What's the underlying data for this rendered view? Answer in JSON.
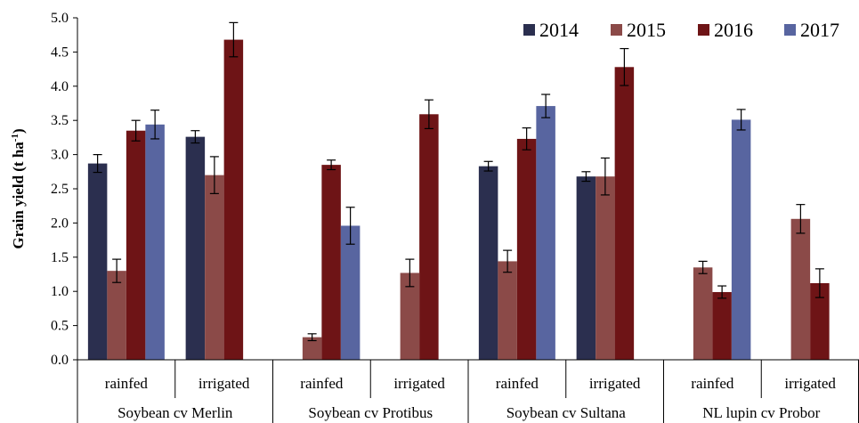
{
  "chart_data": {
    "type": "bar",
    "ylabel": "Grain yield (t ha",
    "ylabel_sup": "-1",
    "ylabel_close": ")",
    "ylim": [
      0,
      5
    ],
    "yticks": [
      "0.0",
      "0.5",
      "1.0",
      "1.5",
      "2.0",
      "2.5",
      "3.0",
      "3.5",
      "4.0",
      "4.5",
      "5.0"
    ],
    "legend_position": "top-right",
    "groups": [
      "Soybean cv Merlin",
      "Soybean cv Protibus",
      "Soybean cv Sultana",
      "NL lupin cv Probor"
    ],
    "categories": [
      "rainfed",
      "irrigated",
      "rainfed",
      "irrigated",
      "rainfed",
      "irrigated",
      "rainfed",
      "irrigated"
    ],
    "series": [
      {
        "name": "2014",
        "color": "#2b2f4f",
        "values": [
          2.87,
          3.26,
          null,
          null,
          2.83,
          2.68,
          null,
          null
        ],
        "errors": [
          0.13,
          0.09,
          null,
          null,
          0.07,
          0.07,
          null,
          null
        ]
      },
      {
        "name": "2015",
        "color": "#8b4a48",
        "values": [
          1.3,
          2.7,
          0.33,
          1.27,
          1.44,
          2.68,
          1.35,
          2.06
        ],
        "errors": [
          0.17,
          0.27,
          0.05,
          0.2,
          0.16,
          0.27,
          0.09,
          0.21
        ]
      },
      {
        "name": "2016",
        "color": "#6e1416",
        "values": [
          3.35,
          4.68,
          2.85,
          3.59,
          3.23,
          4.28,
          0.99,
          1.12
        ],
        "errors": [
          0.15,
          0.25,
          0.07,
          0.21,
          0.16,
          0.27,
          0.09,
          0.21
        ]
      },
      {
        "name": "2017",
        "color": "#5865a0",
        "values": [
          3.44,
          null,
          1.96,
          null,
          3.71,
          null,
          3.51,
          null
        ],
        "errors": [
          0.21,
          null,
          0.27,
          null,
          0.17,
          null,
          0.15,
          null
        ]
      }
    ]
  }
}
